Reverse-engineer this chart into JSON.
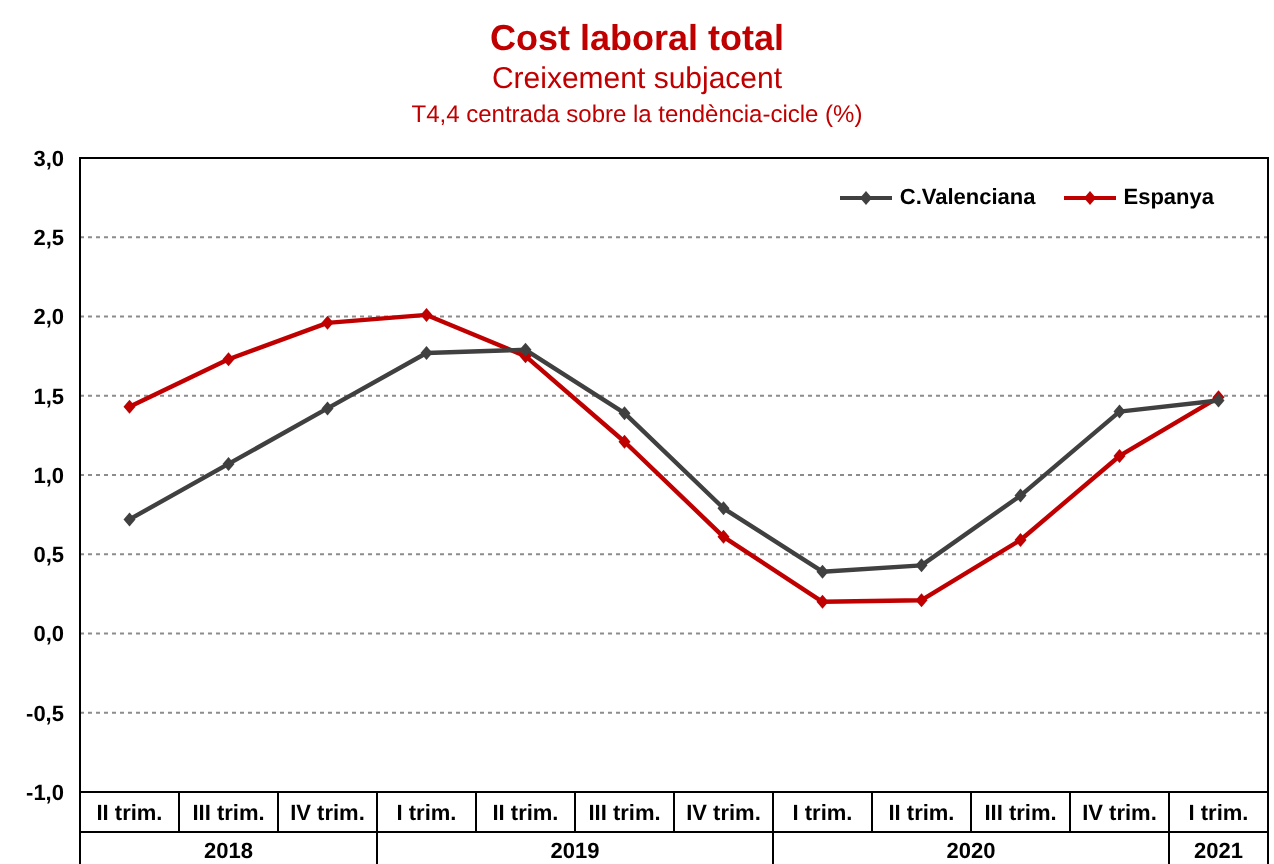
{
  "chart_data": {
    "type": "line",
    "title": "Cost laboral total",
    "subtitle": "Creixement subjacent\nT4,4 centrada sobre la tendència-cicle  (%)",
    "categories": [
      "II trim.",
      "III trim.",
      "IV trim.",
      "I trim.",
      "II trim.",
      "III trim.",
      "IV trim.",
      "I trim.",
      "II trim.",
      "III trim.",
      "IV trim.",
      "I trim."
    ],
    "annotations": [
      "2018",
      "2019",
      "2020",
      "2021"
    ],
    "series": [
      {
        "name": "C.Valenciana",
        "color": "#404040",
        "values": [
          0.72,
          1.07,
          1.42,
          1.77,
          1.79,
          1.39,
          0.79,
          0.39,
          0.43,
          0.87,
          1.4,
          1.47
        ]
      },
      {
        "name": "Espanya",
        "color": "#c00000",
        "values": [
          1.43,
          1.73,
          1.96,
          2.01,
          1.75,
          1.21,
          0.61,
          0.2,
          0.21,
          0.59,
          1.12,
          1.49
        ]
      }
    ],
    "ylim": [
      -1.0,
      3.0
    ],
    "yticks": [
      {
        "value": -1.0,
        "label": "-1,0"
      },
      {
        "value": -0.5,
        "label": "-0,5"
      },
      {
        "value": 0,
        "label": "0,0"
      },
      {
        "value": 0.5,
        "label": "0,5"
      },
      {
        "value": 1.0,
        "label": "1,0"
      },
      {
        "value": 1.5,
        "label": "1,5"
      },
      {
        "value": 2.0,
        "label": "2,0"
      },
      {
        "value": 2.5,
        "label": "2,5"
      },
      {
        "value": 3.0,
        "label": "3,0"
      }
    ],
    "grid": "y",
    "legend": "top right",
    "marker": "diamond",
    "line_style": "solid"
  }
}
